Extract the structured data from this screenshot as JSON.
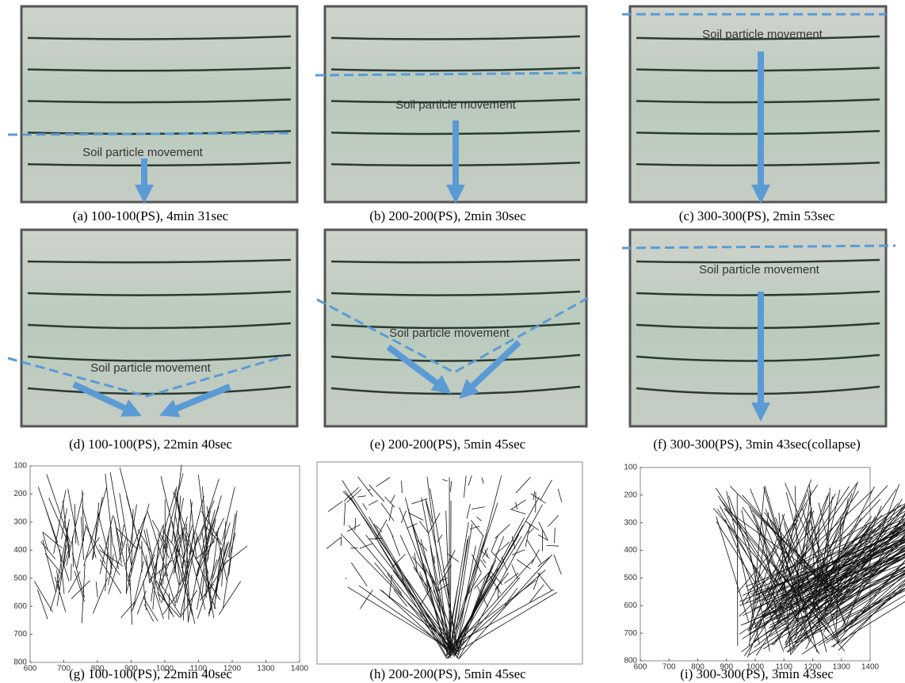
{
  "panels": [
    {
      "caption": "(a)  100-100(PS),  4min  31sec",
      "annotation": "Soil particle movement"
    },
    {
      "caption": "(b)  200-200(PS),  2min  30sec",
      "annotation": "Soil particle movement"
    },
    {
      "caption": "(c)  300-300(PS),  2min  53sec",
      "annotation": "Soil particle movement"
    },
    {
      "caption": "(d)  100-100(PS),  22min  40sec",
      "annotation": "Soil particle movement"
    },
    {
      "caption": "(e)  200-200(PS),  5min  45sec",
      "annotation": "Soil particle movement"
    },
    {
      "caption": "(f)  300-300(PS),  3min  43sec(collapse)",
      "annotation": "Soil particle movement"
    }
  ],
  "plots": [
    {
      "caption": "(g)  100-100(PS),  22min  40sec",
      "xlim": [
        600,
        1400
      ],
      "ylim": [
        100,
        800
      ],
      "xticks": [
        600,
        700,
        800,
        900,
        1000,
        1100,
        1200,
        1300,
        1400
      ],
      "yticks": [
        100,
        200,
        300,
        400,
        500,
        600,
        700,
        800
      ]
    },
    {
      "caption": "(h)  200-200(PS),  5min  45sec"
    },
    {
      "caption": "(i)  300-300(PS),  3min  43sec",
      "xlim": [
        600,
        1400
      ],
      "ylim": [
        100,
        800
      ],
      "xticks": [
        600,
        700,
        800,
        900,
        1000,
        1100,
        1200,
        1300,
        1400
      ],
      "yticks": [
        100,
        200,
        300,
        400,
        500,
        600,
        700,
        800
      ]
    }
  ]
}
